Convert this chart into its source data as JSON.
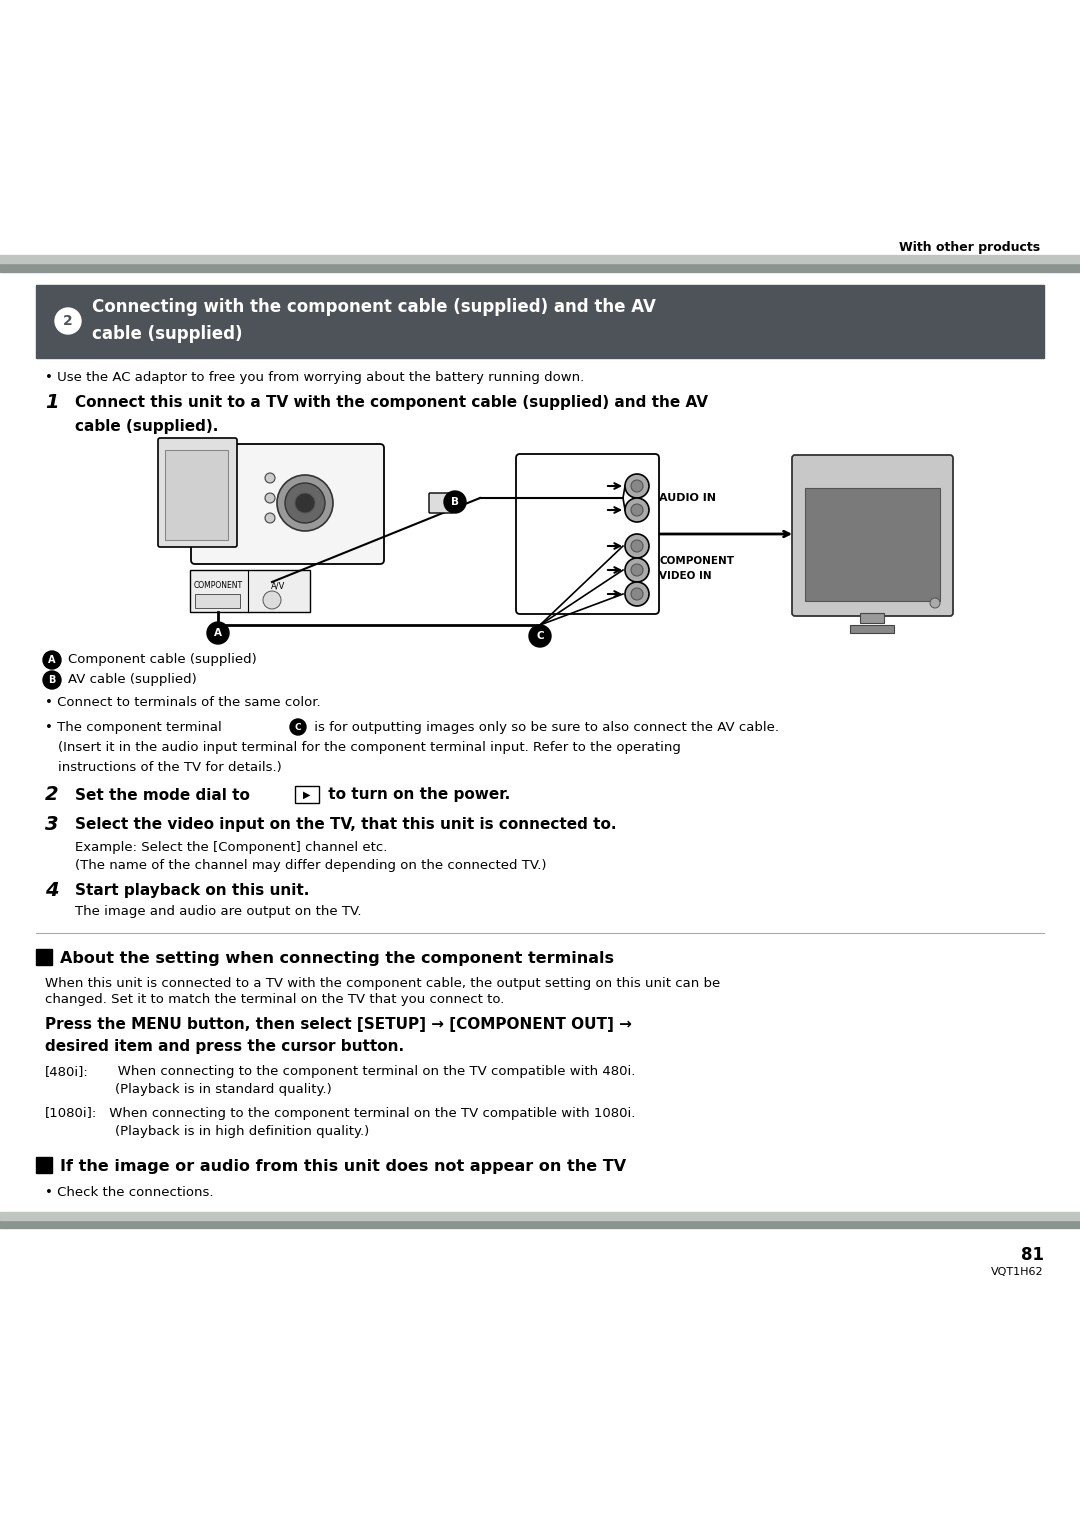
{
  "page_bg": "#ffffff",
  "header_text": "With other products",
  "section_box_bg": "#4d5358",
  "section_box_text_color": "#ffffff",
  "section_title_line1": "① Connecting with the component cable (supplied) and the AV",
  "section_title_line2": "    cable (supplied)",
  "bullet_ac": "• Use the AC adaptor to free you from worrying about the battery running down.",
  "step1_line1": "Connect this unit to a TV with the component cable (supplied) and the AV",
  "step1_line2": "    cable (supplied).",
  "legend_a": "Component cable (supplied)",
  "legend_b": "AV cable (supplied)",
  "bullet_color_text": "• Connect to terminals of the same color.",
  "step2_pre": "Set the mode dial to ",
  "step2_post": " to turn on the power.",
  "step3": "Select the video input on the TV, that this unit is connected to.",
  "step3_sub1": "Example: Select the [Component] channel etc.",
  "step3_sub2": "(The name of the channel may differ depending on the connected TV.)",
  "step4": "Start playback on this unit.",
  "step4_sub": "The image and audio are output on the TV.",
  "section2_title": "About the setting when connecting the component terminals",
  "section2_body1": "When this unit is connected to a TV with the component cable, the output setting on this unit can be",
  "section2_body2": "changed. Set it to match the terminal on the TV that you connect to.",
  "press_bold1": "Press the MENU button, then select [SETUP] → [COMPONENT OUT] →",
  "press_bold2": "desired item and press the cursor button.",
  "item_480_label": "[480i]:",
  "item_480_text": "   When connecting to the component terminal on the TV compatible with 480i.",
  "item_480_sub": "            (Playback is in standard quality.)",
  "item_1080_label": "[1080i]:",
  "item_1080_text": " When connecting to the component terminal on the TV compatible with 1080i.",
  "item_1080_sub": "            (Playback is in high definition quality.)",
  "section3_title": "If the image or audio from this unit does not appear on the TV",
  "section3_body": "• Check the connections.",
  "page_num": "81",
  "page_code": "VQT1H62",
  "bar_dark": "#8c9490",
  "bar_light": "#bfc5c0"
}
